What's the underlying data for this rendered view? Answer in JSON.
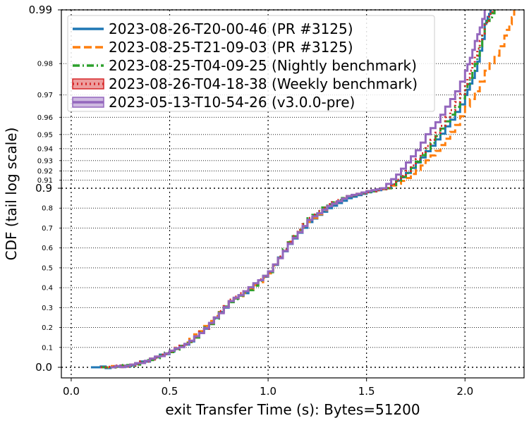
{
  "chart_data": {
    "type": "line",
    "xlabel": "exit Transfer Time (s): Bytes=51200",
    "ylabel": "CDF (tail log scale)",
    "y_scale": "tail-log",
    "xlim": [
      -0.05,
      2.3
    ],
    "grid": "dotted",
    "legend_placement": "top-left",
    "x_ticks": [
      "0.0",
      "0.5",
      "1.0",
      "1.5",
      "2.0"
    ],
    "y_major_ticks": [
      "0.0",
      "0.9",
      "0.99"
    ],
    "y_minor_ticks": [
      "0.1",
      "0.2",
      "0.3",
      "0.4",
      "0.5",
      "0.6",
      "0.7",
      "0.8",
      "0.91",
      "0.92",
      "0.93",
      "0.94",
      "0.95",
      "0.96",
      "0.97",
      "0.98"
    ],
    "series": [
      {
        "name": "2023-08-26-T20-00-46 (PR #3125)",
        "color": "#1f77b4",
        "style": "solid",
        "points": [
          [
            0.1,
            0.0
          ],
          [
            0.2,
            0.0
          ],
          [
            0.3,
            0.01
          ],
          [
            0.4,
            0.04
          ],
          [
            0.5,
            0.08
          ],
          [
            0.6,
            0.13
          ],
          [
            0.7,
            0.22
          ],
          [
            0.8,
            0.33
          ],
          [
            0.9,
            0.39
          ],
          [
            1.0,
            0.48
          ],
          [
            1.1,
            0.62
          ],
          [
            1.2,
            0.73
          ],
          [
            1.3,
            0.8
          ],
          [
            1.4,
            0.85
          ],
          [
            1.5,
            0.88
          ],
          [
            1.6,
            0.9
          ],
          [
            1.7,
            0.918
          ],
          [
            1.8,
            0.938
          ],
          [
            1.9,
            0.955
          ],
          [
            2.0,
            0.97
          ],
          [
            2.05,
            0.978
          ],
          [
            2.1,
            0.988
          ],
          [
            2.13,
            0.99
          ]
        ]
      },
      {
        "name": "2023-08-25-T21-09-03 (PR #3125)",
        "color": "#ff7f0e",
        "style": "dashed",
        "points": [
          [
            0.15,
            0.0
          ],
          [
            0.3,
            0.01
          ],
          [
            0.4,
            0.04
          ],
          [
            0.5,
            0.08
          ],
          [
            0.6,
            0.14
          ],
          [
            0.7,
            0.23
          ],
          [
            0.8,
            0.33
          ],
          [
            0.9,
            0.39
          ],
          [
            1.0,
            0.47
          ],
          [
            1.1,
            0.63
          ],
          [
            1.2,
            0.73
          ],
          [
            1.3,
            0.81
          ],
          [
            1.4,
            0.86
          ],
          [
            1.5,
            0.885
          ],
          [
            1.6,
            0.9
          ],
          [
            1.7,
            0.912
          ],
          [
            1.8,
            0.93
          ],
          [
            1.9,
            0.947
          ],
          [
            2.0,
            0.965
          ],
          [
            2.1,
            0.978
          ],
          [
            2.2,
            0.986
          ],
          [
            2.25,
            0.99
          ]
        ]
      },
      {
        "name": "2023-08-25-T04-09-25 (Nightly benchmark)",
        "color": "#2ca02c",
        "style": "dashdot",
        "points": [
          [
            0.15,
            0.0
          ],
          [
            0.3,
            0.01
          ],
          [
            0.4,
            0.04
          ],
          [
            0.5,
            0.08
          ],
          [
            0.6,
            0.13
          ],
          [
            0.7,
            0.22
          ],
          [
            0.8,
            0.33
          ],
          [
            0.9,
            0.39
          ],
          [
            1.0,
            0.48
          ],
          [
            1.1,
            0.63
          ],
          [
            1.2,
            0.75
          ],
          [
            1.3,
            0.82
          ],
          [
            1.4,
            0.86
          ],
          [
            1.5,
            0.88
          ],
          [
            1.6,
            0.9
          ],
          [
            1.7,
            0.918
          ],
          [
            1.8,
            0.94
          ],
          [
            1.9,
            0.958
          ],
          [
            2.0,
            0.972
          ],
          [
            2.05,
            0.98
          ],
          [
            2.1,
            0.988
          ],
          [
            2.15,
            0.99
          ]
        ]
      },
      {
        "name": "2023-08-26-T04-18-38 (Weekly benchmark)",
        "color": "#d62728",
        "style": "dotted",
        "points": [
          [
            0.15,
            0.0
          ],
          [
            0.3,
            0.01
          ],
          [
            0.4,
            0.04
          ],
          [
            0.5,
            0.08
          ],
          [
            0.6,
            0.13
          ],
          [
            0.7,
            0.22
          ],
          [
            0.8,
            0.34
          ],
          [
            0.9,
            0.4
          ],
          [
            1.0,
            0.48
          ],
          [
            1.1,
            0.63
          ],
          [
            1.2,
            0.75
          ],
          [
            1.3,
            0.82
          ],
          [
            1.4,
            0.86
          ],
          [
            1.5,
            0.88
          ],
          [
            1.6,
            0.9
          ],
          [
            1.7,
            0.92
          ],
          [
            1.8,
            0.942
          ],
          [
            1.9,
            0.96
          ],
          [
            2.0,
            0.974
          ],
          [
            2.05,
            0.982
          ],
          [
            2.1,
            0.988
          ],
          [
            2.14,
            0.99
          ]
        ]
      },
      {
        "name": "2023-05-13-T10-54-26 (v3.0.0-pre)",
        "color": "#9467bd",
        "style": "solid",
        "points": [
          [
            0.2,
            0.0
          ],
          [
            0.3,
            0.01
          ],
          [
            0.4,
            0.04
          ],
          [
            0.5,
            0.08
          ],
          [
            0.6,
            0.13
          ],
          [
            0.7,
            0.22
          ],
          [
            0.8,
            0.33
          ],
          [
            0.9,
            0.4
          ],
          [
            1.0,
            0.48
          ],
          [
            1.1,
            0.62
          ],
          [
            1.2,
            0.74
          ],
          [
            1.3,
            0.81
          ],
          [
            1.4,
            0.86
          ],
          [
            1.5,
            0.885
          ],
          [
            1.6,
            0.905
          ],
          [
            1.7,
            0.928
          ],
          [
            1.8,
            0.95
          ],
          [
            1.9,
            0.965
          ],
          [
            2.0,
            0.978
          ],
          [
            2.05,
            0.985
          ],
          [
            2.1,
            0.99
          ]
        ]
      }
    ]
  }
}
